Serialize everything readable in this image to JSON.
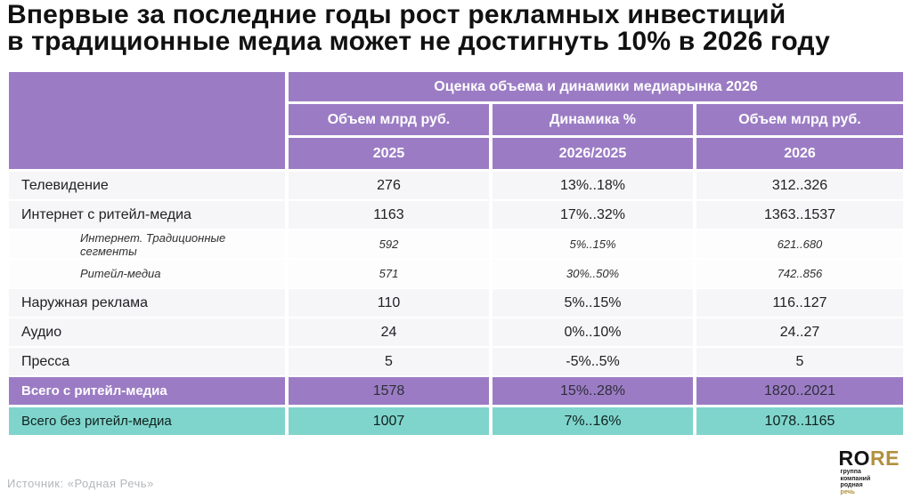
{
  "title": {
    "line1": "Впервые за последние годы рост рекламных инвестиций",
    "line2": "в традиционные медиа может не достигнуть 10% в 2026 году"
  },
  "chart_data": {
    "type": "table",
    "title": "Впервые за последние годы рост рекламных инвестиций в традиционные медиа может не достигнуть 10% в 2026 году",
    "group_header": "Оценка объема и динамики медиарынка 2026",
    "col_headers": [
      "Объем млрд руб.",
      "Динамика %",
      "Объем млрд руб."
    ],
    "year_headers": [
      "2025",
      "2026/2025",
      "2026"
    ],
    "rows": [
      {
        "label": "Телевидение",
        "volume_2025": "276",
        "dynamics_2026_2025": "13%..18%",
        "volume_2026": "312..326",
        "style": "main"
      },
      {
        "label": "Интернет с ритейл-медиа",
        "volume_2025": "1163",
        "dynamics_2026_2025": "17%..32%",
        "volume_2026": "1363..1537",
        "style": "main"
      },
      {
        "label": "Интернет. Традиционные сегменты",
        "volume_2025": "592",
        "dynamics_2026_2025": "5%..15%",
        "volume_2026": "621..680",
        "style": "sub"
      },
      {
        "label": "Ритейл-медиа",
        "volume_2025": "571",
        "dynamics_2026_2025": "30%..50%",
        "volume_2026": "742..856",
        "style": "sub"
      },
      {
        "label": "Наружная реклама",
        "volume_2025": "110",
        "dynamics_2026_2025": "5%..15%",
        "volume_2026": "116..127",
        "style": "main"
      },
      {
        "label": "Аудио",
        "volume_2025": "24",
        "dynamics_2026_2025": "0%..10%",
        "volume_2026": "24..27",
        "style": "main"
      },
      {
        "label": "Пресса",
        "volume_2025": "5",
        "dynamics_2026_2025": "-5%..5%",
        "volume_2026": "5",
        "style": "main"
      },
      {
        "label": "Всего с ритейл-медиа",
        "volume_2025": "1578",
        "dynamics_2026_2025": "15%..28%",
        "volume_2026": "1820..2021",
        "style": "total_purple"
      },
      {
        "label": "Всего без ритейл-медиа",
        "volume_2025": "1007",
        "dynamics_2026_2025": "7%..16%",
        "volume_2026": "1078..1165",
        "style": "total_teal"
      }
    ]
  },
  "footer": {
    "source": "Источник: «Родная Речь»"
  },
  "logo": {
    "word_black": "RO",
    "word_gold": "RE",
    "sub_lines": [
      "группа",
      "компаний",
      "родная",
      "речь"
    ]
  },
  "colors": {
    "header_purple": "#9b7cc4",
    "total_teal": "#7fd5cc",
    "logo_gold": "#b2903f",
    "title_text": "#111111",
    "source_text": "#b3b7bc"
  }
}
